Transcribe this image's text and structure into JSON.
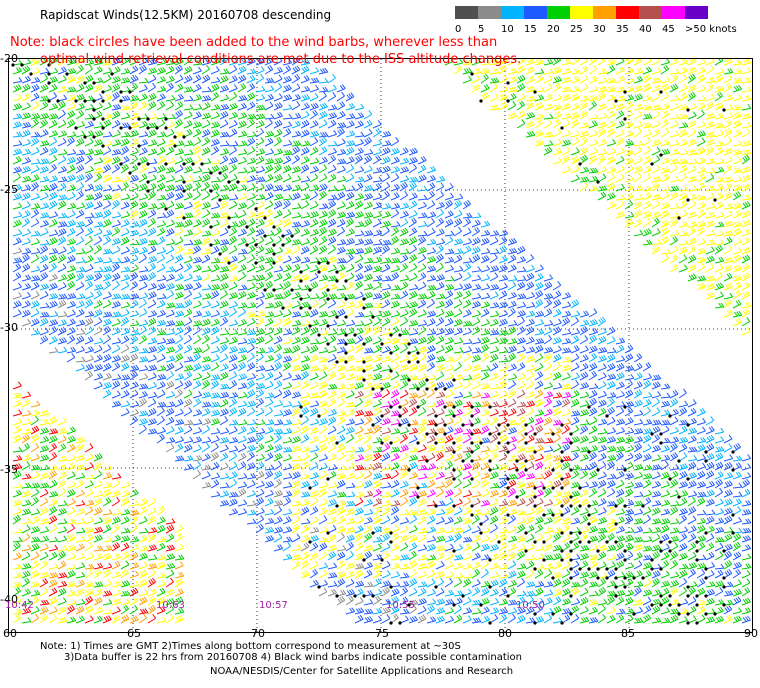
{
  "title": "Rapidscat Winds(12.5KM) 20160708 descending",
  "note": {
    "line1": "Note: black circles have been added to the wind barbs, wherever less than",
    "line2": "optimal wind retrieval conditions are met due to the ISS altitude changes."
  },
  "colorbar": {
    "labels": [
      "0",
      "5",
      "10",
      "15",
      "20",
      "25",
      "30",
      "35",
      "40",
      "45",
      ">50 knots"
    ],
    "colors": [
      "#505050",
      "#8c8c8c",
      "#00b4ff",
      "#1e5aff",
      "#00d000",
      "#ffff00",
      "#ffa000",
      "#ff0000",
      "#b45050",
      "#ff00ff",
      "#6a00c8"
    ]
  },
  "axes": {
    "lat_labels": [
      "-20",
      "-25",
      "-30",
      "-35",
      "-40"
    ],
    "lon_labels": [
      "60",
      "65",
      "70",
      "75",
      "80",
      "85",
      "90"
    ]
  },
  "time_labels": [
    "10:42",
    "10:63",
    "10:57",
    "10:55",
    "10:50"
  ],
  "footnotes": {
    "line1": "Note: 1) Times are GMT 2)Times along bottom correspond to measurement at ~30S",
    "line2": "3)Data buffer is 22 hrs from 20160708 4) Black wind barbs indicate possible contamination",
    "credit": "NOAA/NESDIS/Center for Satellite Applications and Research"
  }
}
